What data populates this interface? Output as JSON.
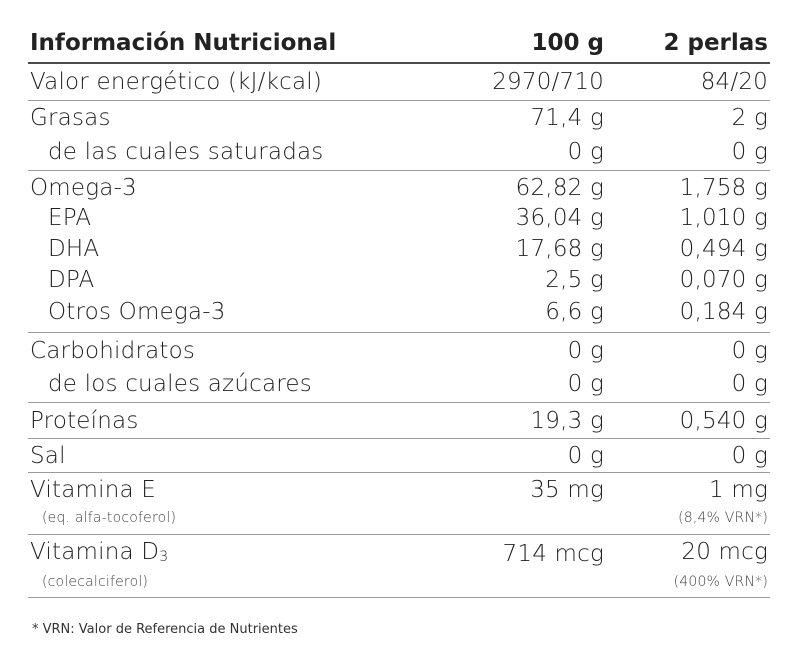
{
  "header": {
    "title": "Información Nutricional",
    "col1": "100 g",
    "col2": "2 perlas"
  },
  "rows": {
    "energy": {
      "label": "Valor energético (kJ/kcal)",
      "v1": "2970/710",
      "v2": "84/20"
    },
    "fat": {
      "label": "Grasas",
      "v1": "71,4 g",
      "v2": "2 g"
    },
    "sat": {
      "label": "de las cuales saturadas",
      "v1": "0 g",
      "v2": "0 g"
    },
    "omega3": {
      "label": "Omega-3",
      "v1": "62,82 g",
      "v2": "1,758 g"
    },
    "epa": {
      "label": "EPA",
      "v1": "36,04 g",
      "v2": "1,010 g"
    },
    "dha": {
      "label": "DHA",
      "v1": "17,68 g",
      "v2": "0,494 g"
    },
    "dpa": {
      "label": "DPA",
      "v1": "2,5 g",
      "v2": "0,070 g"
    },
    "other": {
      "label": "Otros Omega-3",
      "v1": "6,6 g",
      "v2": "0,184 g"
    },
    "carbs": {
      "label": "Carbohidratos",
      "v1": "0 g",
      "v2": "0 g"
    },
    "sugars": {
      "label": "de los cuales azúcares",
      "v1": "0 g",
      "v2": "0 g"
    },
    "protein": {
      "label": "Proteínas",
      "v1": "19,3 g",
      "v2": "0,540 g"
    },
    "salt": {
      "label": "Sal",
      "v1": "0 g",
      "v2": "0 g"
    },
    "vite": {
      "label": "Vitamina E",
      "note": "(eq. alfa-tocoferol)",
      "v1": "35 mg",
      "v2": "1 mg",
      "v2_note": "(8,4% VRN*)"
    },
    "vitd": {
      "label": "Vitamina D",
      "label_sub": "3",
      "note": "(colecalciferol)",
      "v1": "714 mcg",
      "v2": "20 mcg",
      "v2_note": "(400% VRN*)"
    }
  },
  "footnote": "* VRN: Valor de Referencia de Nutrientes"
}
